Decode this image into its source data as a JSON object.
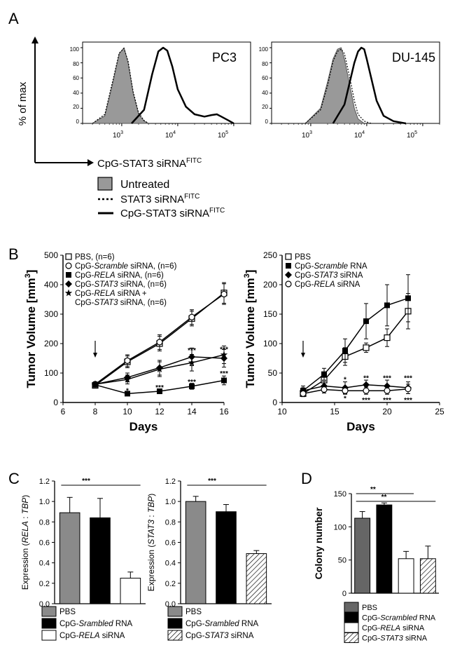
{
  "panels": {
    "A": "A",
    "B": "B",
    "C": "C",
    "D": "D"
  },
  "panel_a": {
    "ylabel": "% of max",
    "xlabel": "CpG-STAT3 siRNA",
    "xlabel_sup": "FITC",
    "yticks": [
      "0",
      "20",
      "40",
      "60",
      "80",
      "100"
    ],
    "xticks": [
      "10",
      "3",
      "10",
      "4",
      "10",
      "5"
    ],
    "legend": [
      {
        "label": "Untreated",
        "sup": ""
      },
      {
        "label": "STAT3 siRNA",
        "sup": "FITC"
      },
      {
        "label": "CpG-STAT3 siRNA",
        "sup": "FITC"
      }
    ]
  },
  "chart_data": [
    {
      "type": "area",
      "title": "PC3",
      "xlabel": "CpG-STAT3 siRNA FITC",
      "ylabel": "% of max",
      "xscale": "log",
      "xlim": [
        200,
        200000
      ],
      "ylim": [
        0,
        100
      ],
      "series": [
        {
          "name": "Untreated",
          "x": [
            300,
            500,
            700,
            900,
            1100,
            1300,
            1600,
            2000,
            2500,
            3000
          ],
          "y": [
            0,
            10,
            55,
            92,
            100,
            80,
            40,
            12,
            3,
            0
          ]
        },
        {
          "name": "STAT3 siRNA",
          "x": [
            300,
            500,
            700,
            900,
            1100,
            1300,
            1600,
            2000,
            2500,
            3000
          ],
          "y": [
            0,
            12,
            58,
            93,
            99,
            82,
            42,
            14,
            4,
            0
          ]
        },
        {
          "name": "CpG-STAT3 siRNA",
          "x": [
            1500,
            2500,
            3500,
            4500,
            5500,
            6500,
            8000,
            10000,
            14000,
            20000,
            30000,
            40000,
            50000,
            60000,
            80000,
            100000
          ],
          "y": [
            0,
            18,
            65,
            95,
            100,
            96,
            75,
            45,
            22,
            12,
            9,
            11,
            12,
            9,
            4,
            0
          ]
        }
      ]
    },
    {
      "type": "area",
      "title": "DU-145",
      "xlabel": "CpG-STAT3 siRNA FITC",
      "ylabel": "% of max",
      "xscale": "log",
      "xlim": [
        200,
        200000
      ],
      "ylim": [
        0,
        100
      ],
      "series": [
        {
          "name": "Untreated",
          "x": [
            800,
            1500,
            2000,
            2500,
            3000,
            3500,
            4000,
            5000,
            6000,
            7000,
            9000
          ],
          "y": [
            0,
            20,
            55,
            85,
            98,
            100,
            85,
            50,
            20,
            6,
            0
          ]
        },
        {
          "name": "STAT3 siRNA",
          "x": [
            800,
            1500,
            2000,
            2500,
            3000,
            3500,
            4000,
            5000,
            6000,
            7000,
            9000,
            12000
          ],
          "y": [
            0,
            18,
            50,
            82,
            95,
            98,
            92,
            60,
            30,
            12,
            3,
            0
          ]
        },
        {
          "name": "CpG-STAT3 siRNA",
          "x": [
            2500,
            4000,
            5000,
            6000,
            7000,
            8000,
            9000,
            10000,
            12000,
            15000,
            20000,
            30000,
            50000
          ],
          "y": [
            0,
            25,
            55,
            80,
            95,
            100,
            98,
            85,
            60,
            30,
            10,
            3,
            0
          ]
        }
      ]
    },
    {
      "type": "line",
      "xlabel": "Days",
      "ylabel": "Tumor Volume [mm3]",
      "xlim": [
        6,
        16
      ],
      "ylim": [
        0,
        500
      ],
      "xticks": [
        6,
        8,
        10,
        12,
        14,
        16
      ],
      "yticks": [
        0,
        100,
        200,
        300,
        400,
        500
      ],
      "arrow_day": 8,
      "x": [
        8,
        10,
        12,
        14,
        16
      ],
      "series": [
        {
          "name": "PBS, (n=6)",
          "marker": "open-square",
          "values": [
            58,
            138,
            200,
            285,
            372
          ],
          "errors": [
            8,
            20,
            25,
            25,
            35
          ]
        },
        {
          "name": "CpG-Scramble siRNA, (n=6)",
          "marker": "open-circle",
          "values": [
            62,
            142,
            205,
            290,
            368
          ],
          "errors": [
            8,
            20,
            25,
            25,
            35
          ]
        },
        {
          "name": "CpG-RELA siRNA, (n=6)",
          "marker": "filled-square",
          "values": [
            60,
            30,
            38,
            55,
            75
          ],
          "errors": [
            6,
            6,
            8,
            10,
            15
          ]
        },
        {
          "name": "CpG-STAT3 siRNA, (n=6)",
          "marker": "filled-diamond",
          "values": [
            62,
            85,
            118,
            155,
            150
          ],
          "errors": [
            8,
            15,
            25,
            30,
            30
          ]
        },
        {
          "name": "CpG-RELA siRNA + CpG-STAT3 siRNA, (n=6)",
          "marker": "filled-star",
          "values": [
            62,
            78,
            113,
            135,
            162
          ],
          "errors": [
            8,
            15,
            25,
            28,
            30
          ]
        }
      ],
      "annotations": [
        {
          "x": 10,
          "y": 42,
          "text": "*"
        },
        {
          "x": 12,
          "y": 52,
          "text": "***"
        },
        {
          "x": 14,
          "y": 72,
          "text": "***"
        },
        {
          "x": 14,
          "y": 178,
          "text": "***"
        },
        {
          "x": 16,
          "y": 100,
          "text": "***"
        },
        {
          "x": 16,
          "y": 182,
          "text": "***"
        }
      ]
    },
    {
      "type": "line",
      "xlabel": "Days",
      "ylabel": "Tumor Volume [mm3]",
      "xlim": [
        10,
        25
      ],
      "ylim": [
        0,
        250
      ],
      "xticks": [
        10,
        15,
        20,
        25
      ],
      "yticks": [
        0,
        50,
        100,
        150,
        200,
        250
      ],
      "arrow_day": 12,
      "x": [
        12,
        14,
        16,
        18,
        20,
        22
      ],
      "series": [
        {
          "name": "PBS",
          "marker": "open-square",
          "values": [
            15,
            38,
            78,
            93,
            110,
            155
          ],
          "errors": [
            5,
            8,
            15,
            8,
            15,
            30
          ]
        },
        {
          "name": "CpG-Scramble RNA",
          "marker": "filled-square",
          "values": [
            20,
            48,
            88,
            138,
            165,
            177
          ],
          "errors": [
            5,
            10,
            20,
            30,
            35,
            40
          ]
        },
        {
          "name": "CpG-STAT3 siRNA",
          "marker": "filled-diamond",
          "values": [
            20,
            28,
            25,
            30,
            28,
            25
          ],
          "errors": [
            8,
            8,
            10,
            8,
            10,
            10
          ]
        },
        {
          "name": "CpG-RELA siRNA",
          "marker": "open-circle",
          "values": [
            15,
            22,
            20,
            20,
            20,
            23
          ],
          "errors": [
            5,
            6,
            6,
            6,
            6,
            8
          ]
        }
      ],
      "annotations": [
        {
          "x": 16,
          "y": 40,
          "text": "*"
        },
        {
          "x": 16,
          "y": 8,
          "text": "*"
        },
        {
          "x": 18,
          "y": 42,
          "text": "**"
        },
        {
          "x": 18,
          "y": 5,
          "text": "***"
        },
        {
          "x": 20,
          "y": 42,
          "text": "***"
        },
        {
          "x": 20,
          "y": 5,
          "text": "***"
        },
        {
          "x": 22,
          "y": 42,
          "text": "***"
        },
        {
          "x": 22,
          "y": 5,
          "text": "***"
        }
      ]
    },
    {
      "type": "bar",
      "ylabel": "Expression (RELA : TBP)",
      "ylim": [
        0,
        1.2
      ],
      "yticks": [
        "0.0",
        "0.2",
        "0.4",
        "0.6",
        "0.8",
        "1.0",
        "1.2"
      ],
      "categories": [
        "PBS",
        "CpG-Srambled RNA",
        "CpG-RELA siRNA"
      ],
      "values": [
        0.89,
        0.84,
        0.25
      ],
      "errors": [
        0.15,
        0.19,
        0.06
      ],
      "fills": [
        "#8a8a8a",
        "#000000",
        "#ffffff"
      ],
      "significance": [
        {
          "from": 0,
          "to": 2,
          "text": "***"
        }
      ]
    },
    {
      "type": "bar",
      "ylabel": "Expression (STAT3 : TBP)",
      "ylim": [
        0,
        1.2
      ],
      "yticks": [
        "0.0",
        "0.2",
        "0.4",
        "0.6",
        "0.8",
        "1.0",
        "1.2"
      ],
      "categories": [
        "PBS",
        "CpG-Srambled RNA",
        "CpG-STAT3 siRNA"
      ],
      "values": [
        1.0,
        0.9,
        0.49
      ],
      "errors": [
        0.05,
        0.07,
        0.03
      ],
      "fills": [
        "#8a8a8a",
        "#000000",
        "hatch"
      ],
      "significance": [
        {
          "from": 0,
          "to": 2,
          "text": "***"
        }
      ]
    },
    {
      "type": "bar",
      "ylabel": "Colony number",
      "ylim": [
        0,
        150
      ],
      "yticks": [
        "0",
        "50",
        "100",
        "150"
      ],
      "categories": [
        "PBS",
        "CpG-Scrambled RNA",
        "CpG-RELA siRNA",
        "CpG-STAT3 siRNA"
      ],
      "values": [
        113,
        133,
        52,
        52
      ],
      "errors": [
        10,
        3,
        11,
        19
      ],
      "fills": [
        "#666666",
        "#000000",
        "#ffffff",
        "hatch"
      ],
      "significance": [
        {
          "from": 0,
          "to": 2,
          "text": "**"
        },
        {
          "from": 0,
          "to": 3,
          "text": "**"
        }
      ]
    }
  ]
}
